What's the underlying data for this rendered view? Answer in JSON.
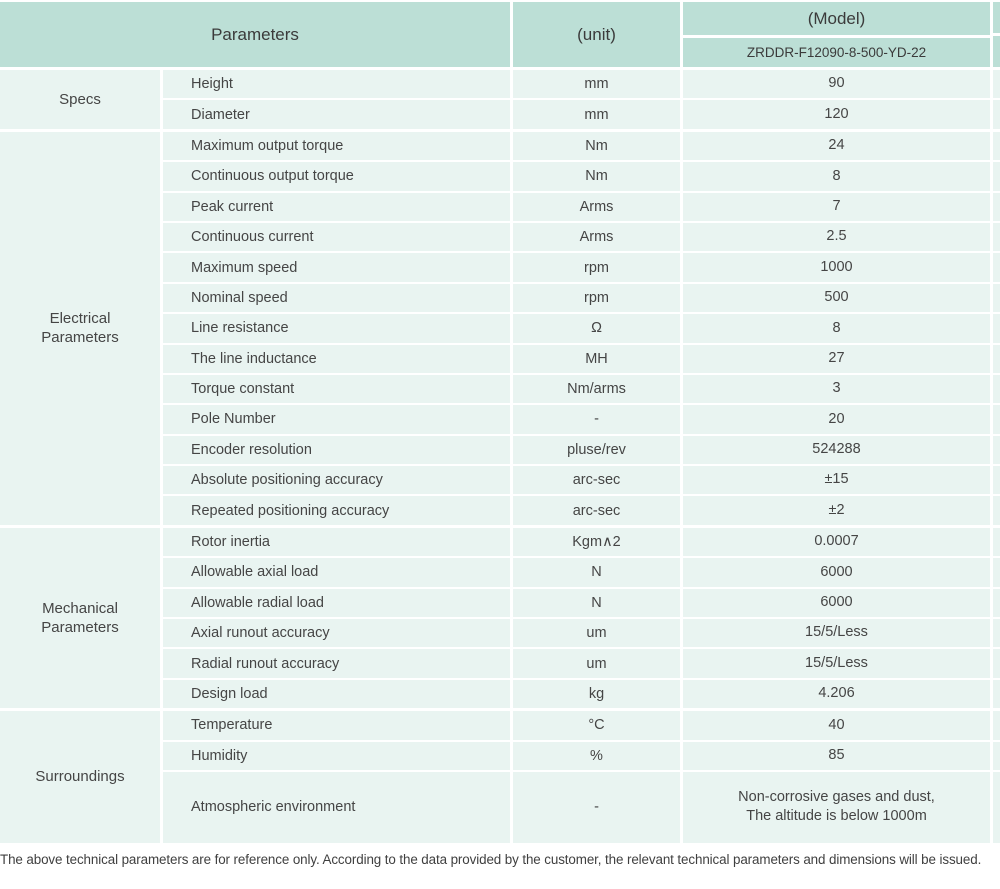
{
  "colors": {
    "header_bg": "#bcdfd6",
    "row_bg": "#e9f4f1",
    "divider": "#ffffff",
    "text": "#454545"
  },
  "header": {
    "parameters_label": "Parameters",
    "unit_label": "(unit)",
    "model_label": "(Model)",
    "model_number": "ZRDDR-F12090-8-500-YD-22"
  },
  "sections": [
    {
      "group": "Specs",
      "rows": [
        {
          "param": "Height",
          "unit": "mm",
          "value": "90"
        },
        {
          "param": "Diameter",
          "unit": "mm",
          "value": "120"
        }
      ]
    },
    {
      "group": "Electrical\nParameters",
      "rows": [
        {
          "param": "Maximum output torque",
          "unit": "Nm",
          "value": "24"
        },
        {
          "param": "Continuous output torque",
          "unit": "Nm",
          "value": "8"
        },
        {
          "param": "Peak current",
          "unit": "Arms",
          "value": "7"
        },
        {
          "param": "Continuous current",
          "unit": "Arms",
          "value": "2.5"
        },
        {
          "param": "Maximum speed",
          "unit": "rpm",
          "value": "1000"
        },
        {
          "param": "Nominal speed",
          "unit": "rpm",
          "value": "500"
        },
        {
          "param": "Line resistance",
          "unit": "Ω",
          "value": "8"
        },
        {
          "param": "The line inductance",
          "unit": "MH",
          "value": "27"
        },
        {
          "param": "Torque constant",
          "unit": "Nm/arms",
          "value": "3"
        },
        {
          "param": "Pole Number",
          "unit": "-",
          "value": "20"
        },
        {
          "param": "Encoder resolution",
          "unit": "pluse/rev",
          "value": "524288"
        },
        {
          "param": "Absolute positioning accuracy",
          "unit": "arc-sec",
          "value": "±15"
        },
        {
          "param": "Repeated positioning accuracy",
          "unit": "arc-sec",
          "value": "±2"
        }
      ]
    },
    {
      "group": "Mechanical\nParameters",
      "rows": [
        {
          "param": "Rotor inertia",
          "unit": "Kgm∧2",
          "value": "0.0007"
        },
        {
          "param": "Allowable axial load",
          "unit": "N",
          "value": "6000"
        },
        {
          "param": "Allowable radial load",
          "unit": "N",
          "value": "6000"
        },
        {
          "param": "Axial runout accuracy",
          "unit": "um",
          "value": "15/5/Less"
        },
        {
          "param": "Radial runout accuracy",
          "unit": "um",
          "value": "15/5/Less"
        },
        {
          "param": "Design load",
          "unit": "kg",
          "value": "4.206"
        }
      ]
    },
    {
      "group": "Surroundings",
      "rows": [
        {
          "param": "Temperature",
          "unit": "°C",
          "value": "40"
        },
        {
          "param": "Humidity",
          "unit": "%",
          "value": "85"
        },
        {
          "param": "Atmospheric environment",
          "unit": "-",
          "value": "Non-corrosive gases and dust,\nThe altitude is below 1000m",
          "tall": true
        }
      ]
    }
  ],
  "footnote": "The above technical parameters are for reference only. According to the data provided by the customer, the relevant technical parameters and dimensions will be issued."
}
